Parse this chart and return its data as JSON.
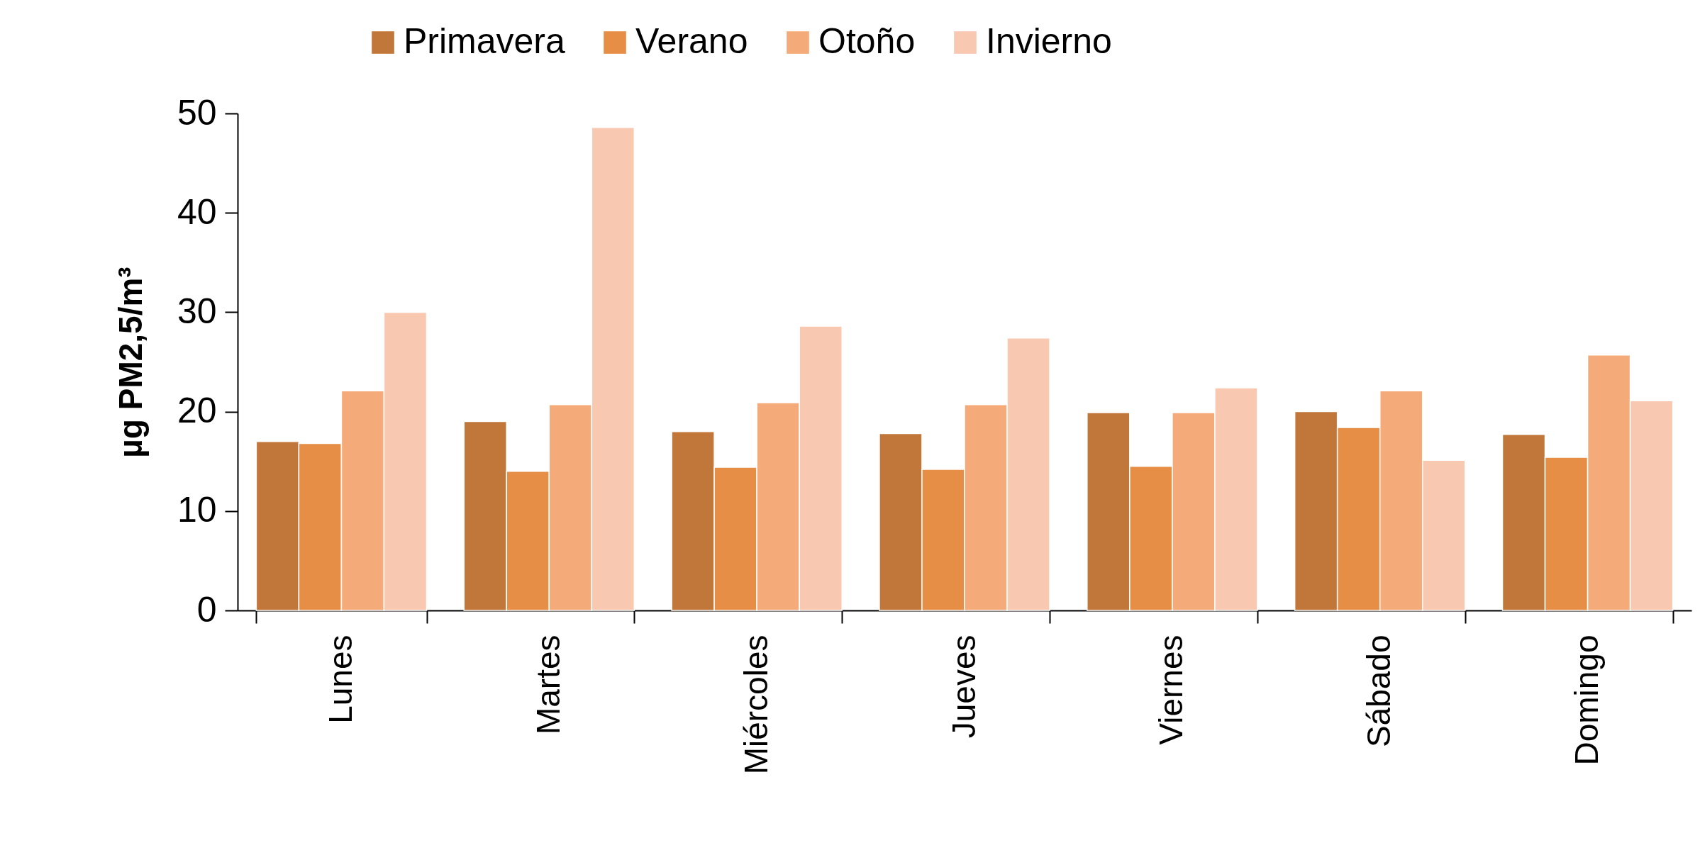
{
  "chart_data": {
    "type": "bar",
    "ylabel": "µg PM2,5/m³",
    "categories": [
      "Lunes",
      "Martes",
      "Miércoles",
      "Jueves",
      "Viernes",
      "Sábado",
      "Domingo"
    ],
    "series": [
      {
        "name": "Primavera",
        "color": "#c2773a",
        "values": [
          17.0,
          19.0,
          18.0,
          17.8,
          19.9,
          20.0,
          17.7
        ]
      },
      {
        "name": "Verano",
        "color": "#e68e45",
        "values": [
          16.8,
          14.0,
          14.4,
          14.2,
          14.5,
          18.4,
          15.4
        ]
      },
      {
        "name": "Otoño",
        "color": "#f4ab79",
        "values": [
          22.1,
          20.7,
          20.9,
          20.7,
          19.9,
          22.1,
          25.7
        ]
      },
      {
        "name": "Invierno",
        "color": "#f8c8b0",
        "values": [
          30.0,
          48.6,
          28.6,
          27.4,
          22.4,
          15.1,
          21.1
        ]
      }
    ],
    "ylim": [
      0,
      50
    ],
    "yticks": [
      0,
      10,
      20,
      30,
      40,
      50
    ],
    "grid": false,
    "legend": "top"
  }
}
